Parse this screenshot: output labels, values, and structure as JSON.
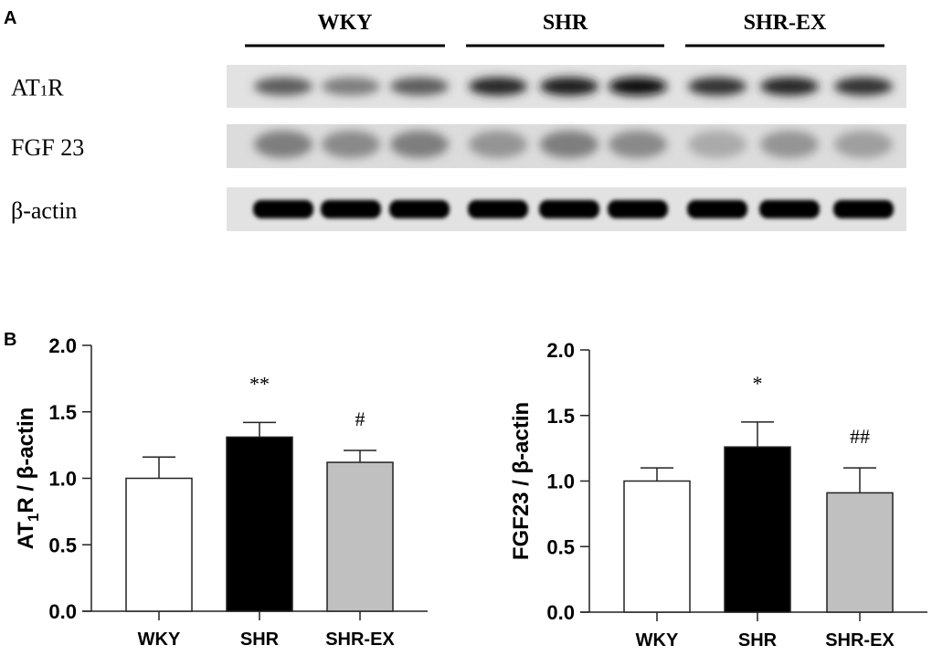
{
  "panel_a": {
    "label": "A",
    "groups": [
      "WKY",
      "SHR",
      "SHR-EX"
    ],
    "rows": [
      {
        "label_main": "AT",
        "label_sub": "1",
        "label_end": "R",
        "intensities": [
          0.6,
          0.45,
          0.6,
          0.85,
          0.9,
          0.95,
          0.8,
          0.85,
          0.8
        ]
      },
      {
        "label_main": "FGF 23",
        "label_sub": "",
        "label_end": "",
        "intensities": [
          0.45,
          0.4,
          0.45,
          0.35,
          0.45,
          0.4,
          0.25,
          0.35,
          0.3
        ]
      },
      {
        "label_main": "β-actin",
        "label_sub": "",
        "label_end": "",
        "intensities": [
          1,
          1,
          1,
          1,
          1,
          1,
          1,
          1,
          1
        ]
      }
    ]
  },
  "panel_b": {
    "label": "B"
  },
  "chart_data": [
    {
      "type": "bar",
      "categories": [
        "WKY",
        "SHR",
        "SHR-EX"
      ],
      "values": [
        1.0,
        1.31,
        1.12
      ],
      "error_upper": [
        1.16,
        1.42,
        1.21
      ],
      "annotations": [
        "",
        "**",
        "#"
      ],
      "bar_colors": [
        "#ffffff",
        "#000000",
        "#c0c0c0"
      ],
      "ylabel_main": "AT",
      "ylabel_sub": "1",
      "ylabel_end": "R / β-actin",
      "ylim": [
        0,
        2.0
      ],
      "yticks": [
        "0.0",
        "0.5",
        "1.0",
        "1.5",
        "2.0"
      ],
      "grid": false
    },
    {
      "type": "bar",
      "categories": [
        "WKY",
        "SHR",
        "SHR-EX"
      ],
      "values": [
        1.0,
        1.26,
        0.91
      ],
      "error_upper": [
        1.1,
        1.45,
        1.1
      ],
      "annotations": [
        "",
        "*",
        "##"
      ],
      "bar_colors": [
        "#ffffff",
        "#000000",
        "#c0c0c0"
      ],
      "ylabel_main": "FGF23 / β-actin",
      "ylabel_sub": "",
      "ylabel_end": "",
      "ylim": [
        0,
        2.0
      ],
      "yticks": [
        "0.0",
        "0.5",
        "1.0",
        "1.5",
        "2.0"
      ],
      "grid": false
    }
  ]
}
